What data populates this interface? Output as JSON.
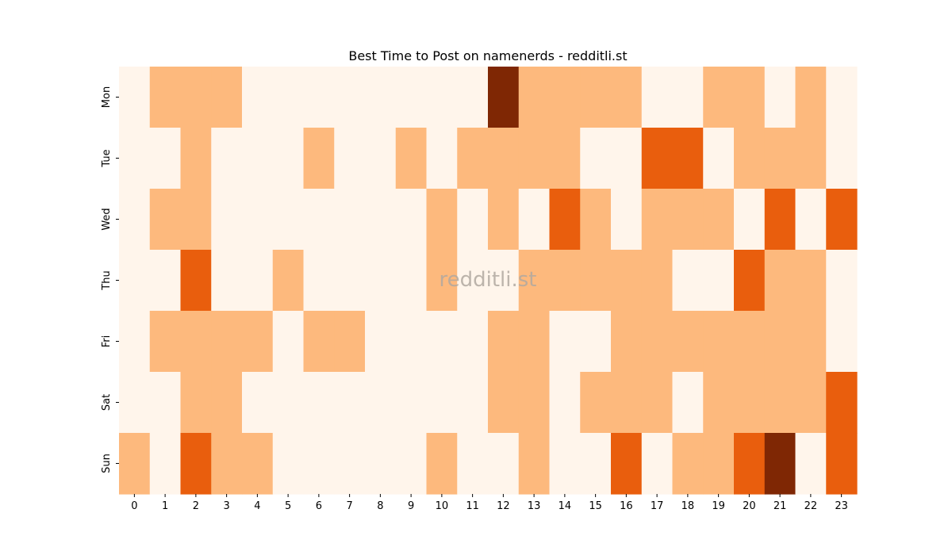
{
  "chart_data": {
    "type": "heatmap",
    "title": "Best Time to Post on namenerds - redditli.st",
    "watermark": "redditli.st",
    "x_categories": [
      "0",
      "1",
      "2",
      "3",
      "4",
      "5",
      "6",
      "7",
      "8",
      "9",
      "10",
      "11",
      "12",
      "13",
      "14",
      "15",
      "16",
      "17",
      "18",
      "19",
      "20",
      "21",
      "22",
      "23"
    ],
    "y_categories": [
      "Mon",
      "Tue",
      "Wed",
      "Thu",
      "Fri",
      "Sat",
      "Sun"
    ],
    "xlabel": "",
    "ylabel": "",
    "value_range": [
      0,
      3
    ],
    "colormap": [
      "#fff5eb",
      "#fdb97d",
      "#e95e0d",
      "#7f2704"
    ],
    "values": [
      [
        0,
        1,
        1,
        1,
        0,
        0,
        0,
        0,
        0,
        0,
        0,
        0,
        3,
        1,
        1,
        1,
        1,
        0,
        0,
        1,
        1,
        0,
        1,
        0
      ],
      [
        0,
        0,
        1,
        0,
        0,
        0,
        1,
        0,
        0,
        1,
        0,
        1,
        1,
        1,
        1,
        0,
        0,
        2,
        2,
        0,
        1,
        1,
        1,
        0
      ],
      [
        0,
        1,
        1,
        0,
        0,
        0,
        0,
        0,
        0,
        0,
        1,
        0,
        1,
        0,
        2,
        1,
        0,
        1,
        1,
        1,
        0,
        2,
        0,
        2
      ],
      [
        0,
        0,
        2,
        0,
        0,
        1,
        0,
        0,
        0,
        0,
        1,
        0,
        0,
        1,
        1,
        1,
        1,
        1,
        0,
        0,
        2,
        1,
        1,
        0
      ],
      [
        0,
        1,
        1,
        1,
        1,
        0,
        1,
        1,
        0,
        0,
        0,
        0,
        1,
        1,
        0,
        0,
        1,
        1,
        1,
        1,
        1,
        1,
        1,
        0
      ],
      [
        0,
        0,
        1,
        1,
        0,
        0,
        0,
        0,
        0,
        0,
        0,
        0,
        1,
        1,
        0,
        1,
        1,
        1,
        0,
        1,
        1,
        1,
        1,
        2
      ],
      [
        1,
        0,
        2,
        1,
        1,
        0,
        0,
        0,
        0,
        0,
        1,
        0,
        0,
        1,
        0,
        0,
        2,
        0,
        1,
        1,
        2,
        3,
        0,
        2
      ]
    ]
  }
}
